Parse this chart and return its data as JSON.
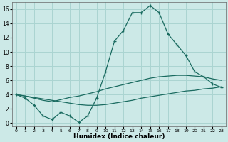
{
  "xlabel": "Humidex (Indice chaleur)",
  "xlim": [
    -0.5,
    23.5
  ],
  "ylim": [
    -0.5,
    17
  ],
  "bg_color": "#cce9e7",
  "grid_color": "#aad4d1",
  "line_color": "#1a6b60",
  "xticks": [
    0,
    1,
    2,
    3,
    4,
    5,
    6,
    7,
    8,
    9,
    10,
    11,
    12,
    13,
    14,
    15,
    16,
    17,
    18,
    19,
    20,
    21,
    22,
    23
  ],
  "yticks": [
    0,
    2,
    4,
    6,
    8,
    10,
    12,
    14,
    16
  ],
  "line1_x": [
    0,
    1,
    2,
    3,
    4,
    5,
    6,
    7,
    8,
    9,
    10,
    11,
    12,
    13,
    14,
    15,
    16,
    17,
    18,
    19,
    20,
    21,
    22,
    23
  ],
  "line1_y": [
    4.0,
    3.5,
    2.5,
    1.0,
    0.5,
    1.5,
    1.0,
    0.1,
    1.0,
    3.5,
    7.2,
    11.5,
    13.0,
    15.5,
    15.5,
    16.5,
    15.5,
    12.5,
    11.0,
    9.5,
    7.2,
    6.5,
    5.5,
    5.0
  ],
  "line2_x": [
    0,
    1,
    2,
    3,
    4,
    5,
    6,
    7,
    8,
    9,
    10,
    11,
    12,
    13,
    14,
    15,
    16,
    17,
    18,
    19,
    20,
    21,
    22,
    23
  ],
  "line2_y": [
    4.0,
    3.8,
    3.5,
    3.2,
    3.0,
    3.3,
    3.6,
    3.8,
    4.1,
    4.4,
    4.8,
    5.1,
    5.4,
    5.7,
    6.0,
    6.3,
    6.5,
    6.6,
    6.7,
    6.7,
    6.6,
    6.5,
    6.2,
    6.0
  ],
  "line3_x": [
    0,
    1,
    2,
    3,
    4,
    5,
    6,
    7,
    8,
    9,
    10,
    11,
    12,
    13,
    14,
    15,
    16,
    17,
    18,
    19,
    20,
    21,
    22,
    23
  ],
  "line3_y": [
    4.0,
    3.8,
    3.6,
    3.4,
    3.2,
    3.0,
    2.8,
    2.6,
    2.5,
    2.5,
    2.6,
    2.8,
    3.0,
    3.2,
    3.5,
    3.7,
    3.9,
    4.1,
    4.3,
    4.5,
    4.6,
    4.8,
    4.9,
    5.1
  ]
}
